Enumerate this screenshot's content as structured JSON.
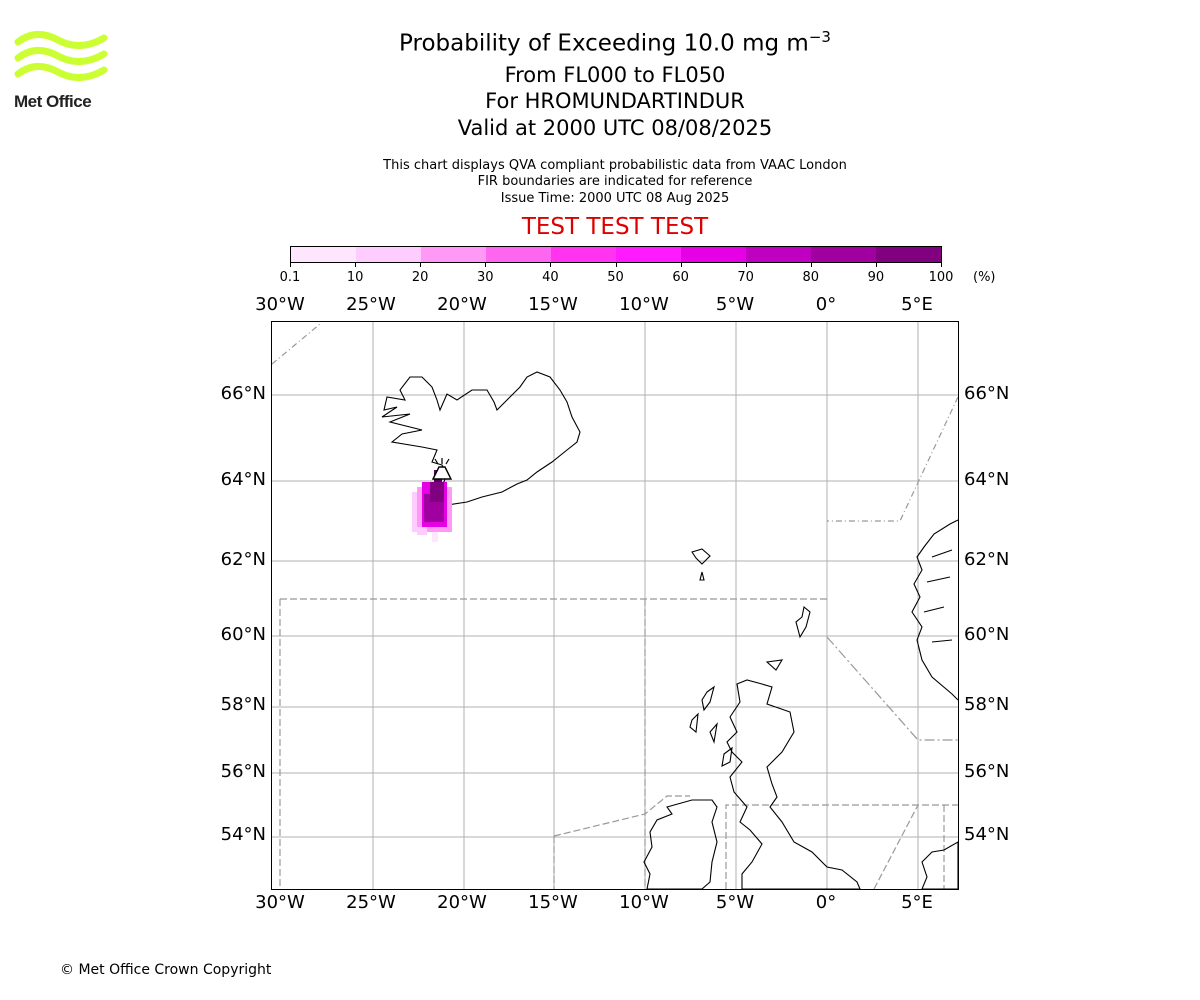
{
  "branding": {
    "logo_text": "Met Office",
    "logo_color": "#ccff33",
    "copyright": "© Met Office Crown Copyright"
  },
  "title": {
    "main": "Probability of Exceeding 10.0 mg m",
    "main_superscript": "−3",
    "level_range": "From FL000 to FL050",
    "volcano": "For HROMUNDARTINDUR",
    "valid_time": "Valid at 2000 UTC 08/08/2025"
  },
  "info": {
    "line1": "This chart displays QVA compliant probabilistic data from VAAC London",
    "line2": "FIR boundaries are indicated for reference",
    "line3": "Issue Time: 2000 UTC 08 Aug 2025"
  },
  "test_banner": "TEST TEST TEST",
  "colorbar": {
    "ticks": [
      "0.1",
      "10",
      "20",
      "30",
      "40",
      "50",
      "60",
      "70",
      "80",
      "90",
      "100"
    ],
    "unit": "(%)",
    "colors": [
      "#ffe6ff",
      "#ffccff",
      "#ff99f5",
      "#ff66f0",
      "#ff33f0",
      "#ff1aff",
      "#e600e6",
      "#c000c0",
      "#a000a0",
      "#80007f",
      "#5c0060"
    ]
  },
  "map": {
    "lon_labels": [
      "30°W",
      "25°W",
      "20°W",
      "15°W",
      "10°W",
      "5°W",
      "0°",
      "5°E"
    ],
    "lat_labels": [
      "66°N",
      "64°N",
      "62°N",
      "60°N",
      "58°N",
      "56°N",
      "54°N"
    ],
    "volcano_icon": "volcano-triangle-icon",
    "ash_color_scale": "pink-to-dark-purple"
  }
}
